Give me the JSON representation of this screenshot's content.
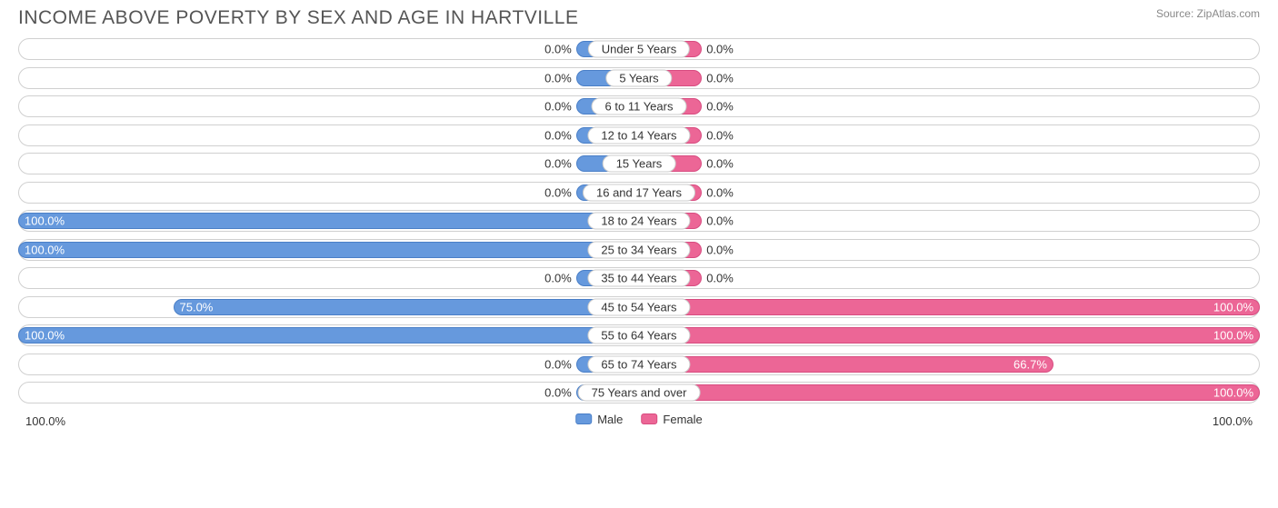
{
  "title": "INCOME ABOVE POVERTY BY SEX AND AGE IN HARTVILLE",
  "source": "Source: ZipAtlas.com",
  "chart": {
    "type": "diverging-bar",
    "male_color": "#6699dd",
    "male_border": "#4a7fc7",
    "female_color": "#ec6696",
    "female_border": "#d84c80",
    "track_border": "#d0d0d0",
    "background": "#ffffff",
    "min_bar_pct": 10,
    "label_fontsize": 13,
    "title_fontsize": 21,
    "title_color": "#555555",
    "rows": [
      {
        "label": "Under 5 Years",
        "male": 0.0,
        "female": 0.0
      },
      {
        "label": "5 Years",
        "male": 0.0,
        "female": 0.0
      },
      {
        "label": "6 to 11 Years",
        "male": 0.0,
        "female": 0.0
      },
      {
        "label": "12 to 14 Years",
        "male": 0.0,
        "female": 0.0
      },
      {
        "label": "15 Years",
        "male": 0.0,
        "female": 0.0
      },
      {
        "label": "16 and 17 Years",
        "male": 0.0,
        "female": 0.0
      },
      {
        "label": "18 to 24 Years",
        "male": 100.0,
        "female": 0.0
      },
      {
        "label": "25 to 34 Years",
        "male": 100.0,
        "female": 0.0
      },
      {
        "label": "35 to 44 Years",
        "male": 0.0,
        "female": 0.0
      },
      {
        "label": "45 to 54 Years",
        "male": 75.0,
        "female": 100.0
      },
      {
        "label": "55 to 64 Years",
        "male": 100.0,
        "female": 100.0
      },
      {
        "label": "65 to 74 Years",
        "male": 0.0,
        "female": 66.7
      },
      {
        "label": "75 Years and over",
        "male": 0.0,
        "female": 100.0
      }
    ]
  },
  "axis": {
    "left": "100.0%",
    "right": "100.0%"
  },
  "legend": {
    "male": "Male",
    "female": "Female"
  }
}
